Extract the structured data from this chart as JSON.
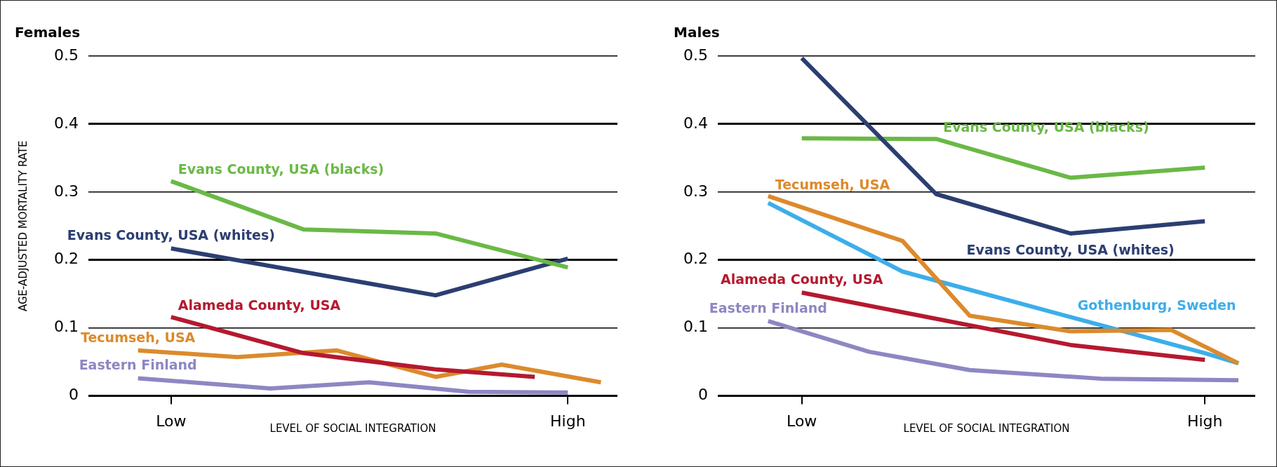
{
  "chart_data": [
    {
      "type": "line",
      "title": "Females",
      "xlabel": "LEVEL OF SOCIAL INTEGRATION",
      "ylabel": "AGE-ADJUSTED MORTALITY RATE",
      "categories": [
        null,
        null,
        "Low",
        null,
        null,
        null,
        null,
        null,
        null,
        null,
        null,
        null,
        null,
        null,
        "High",
        null
      ],
      "ylim": [
        0,
        0.5
      ],
      "yticks": [
        0,
        0.1,
        0.2,
        0.3,
        0.4,
        0.5
      ],
      "grid": "y",
      "legend": false,
      "marker": "none",
      "line_style": "solid",
      "series": [
        {
          "name": "Evans County, USA (blacks)",
          "color": "#6ab946",
          "values": [
            null,
            null,
            0.316,
            null,
            null,
            null,
            0.245,
            null,
            null,
            null,
            0.239,
            null,
            null,
            null,
            0.189,
            null
          ]
        },
        {
          "name": "Evans County, USA (whites)",
          "color": "#2c3e72",
          "values": [
            null,
            null,
            0.217,
            null,
            null,
            null,
            null,
            null,
            null,
            null,
            0.148,
            null,
            null,
            null,
            0.202,
            null
          ]
        },
        {
          "name": "Alameda County, USA",
          "color": "#b5192f",
          "values": [
            null,
            null,
            0.116,
            null,
            null,
            null,
            0.063,
            null,
            null,
            null,
            0.039,
            null,
            null,
            0.028,
            null,
            null
          ]
        },
        {
          "name": "Tecumseh, USA",
          "color": "#dc8a2c",
          "values": [
            null,
            0.067,
            null,
            null,
            0.057,
            null,
            null,
            0.067,
            null,
            null,
            0.028,
            null,
            0.046,
            null,
            null,
            0.02
          ]
        },
        {
          "name": "Eastern Finland",
          "color": "#8d87c3",
          "values": [
            null,
            0.026,
            null,
            null,
            null,
            0.011,
            null,
            null,
            0.02,
            null,
            null,
            0.006,
            null,
            null,
            0.005,
            null
          ]
        }
      ]
    },
    {
      "type": "line",
      "title": "Males",
      "xlabel": "LEVEL OF SOCIAL INTEGRATION",
      "categories": [
        null,
        null,
        "Low",
        null,
        null,
        null,
        null,
        null,
        null,
        null,
        null,
        null,
        null,
        null,
        "High",
        null
      ],
      "ylim": [
        0,
        0.5
      ],
      "yticks": [
        0,
        0.1,
        0.2,
        0.3,
        0.4,
        0.5
      ],
      "grid": "y",
      "legend": false,
      "marker": "none",
      "line_style": "solid",
      "series": [
        {
          "name": "Evans County, USA (whites)",
          "color": "#2c3e72",
          "values": [
            null,
            null,
            0.497,
            null,
            null,
            null,
            0.297,
            null,
            null,
            null,
            0.239,
            null,
            null,
            null,
            0.257,
            null
          ]
        },
        {
          "name": "Evans County, USA (blacks)",
          "color": "#6ab946",
          "values": [
            null,
            null,
            0.379,
            null,
            null,
            null,
            0.378,
            null,
            null,
            null,
            0.321,
            null,
            null,
            null,
            0.336,
            null
          ]
        },
        {
          "name": "Tecumseh, USA",
          "color": "#dc8a2c",
          "values": [
            null,
            0.294,
            null,
            null,
            null,
            0.228,
            null,
            0.118,
            null,
            null,
            0.095,
            null,
            null,
            0.097,
            null,
            0.048
          ]
        },
        {
          "name": "Gothenburg, Sweden",
          "color": "#3caeea",
          "values": [
            null,
            0.284,
            null,
            null,
            null,
            0.183,
            null,
            null,
            null,
            null,
            0.116,
            null,
            null,
            null,
            0.063,
            0.048
          ]
        },
        {
          "name": "Alameda County, USA",
          "color": "#b5192f",
          "values": [
            null,
            null,
            0.152,
            null,
            null,
            null,
            null,
            null,
            null,
            null,
            0.075,
            null,
            null,
            null,
            0.053,
            null
          ]
        },
        {
          "name": "Eastern Finland",
          "color": "#8d87c3",
          "values": [
            null,
            0.11,
            null,
            null,
            0.065,
            null,
            null,
            0.038,
            null,
            null,
            null,
            0.025,
            null,
            null,
            null,
            0.023
          ]
        }
      ]
    }
  ]
}
